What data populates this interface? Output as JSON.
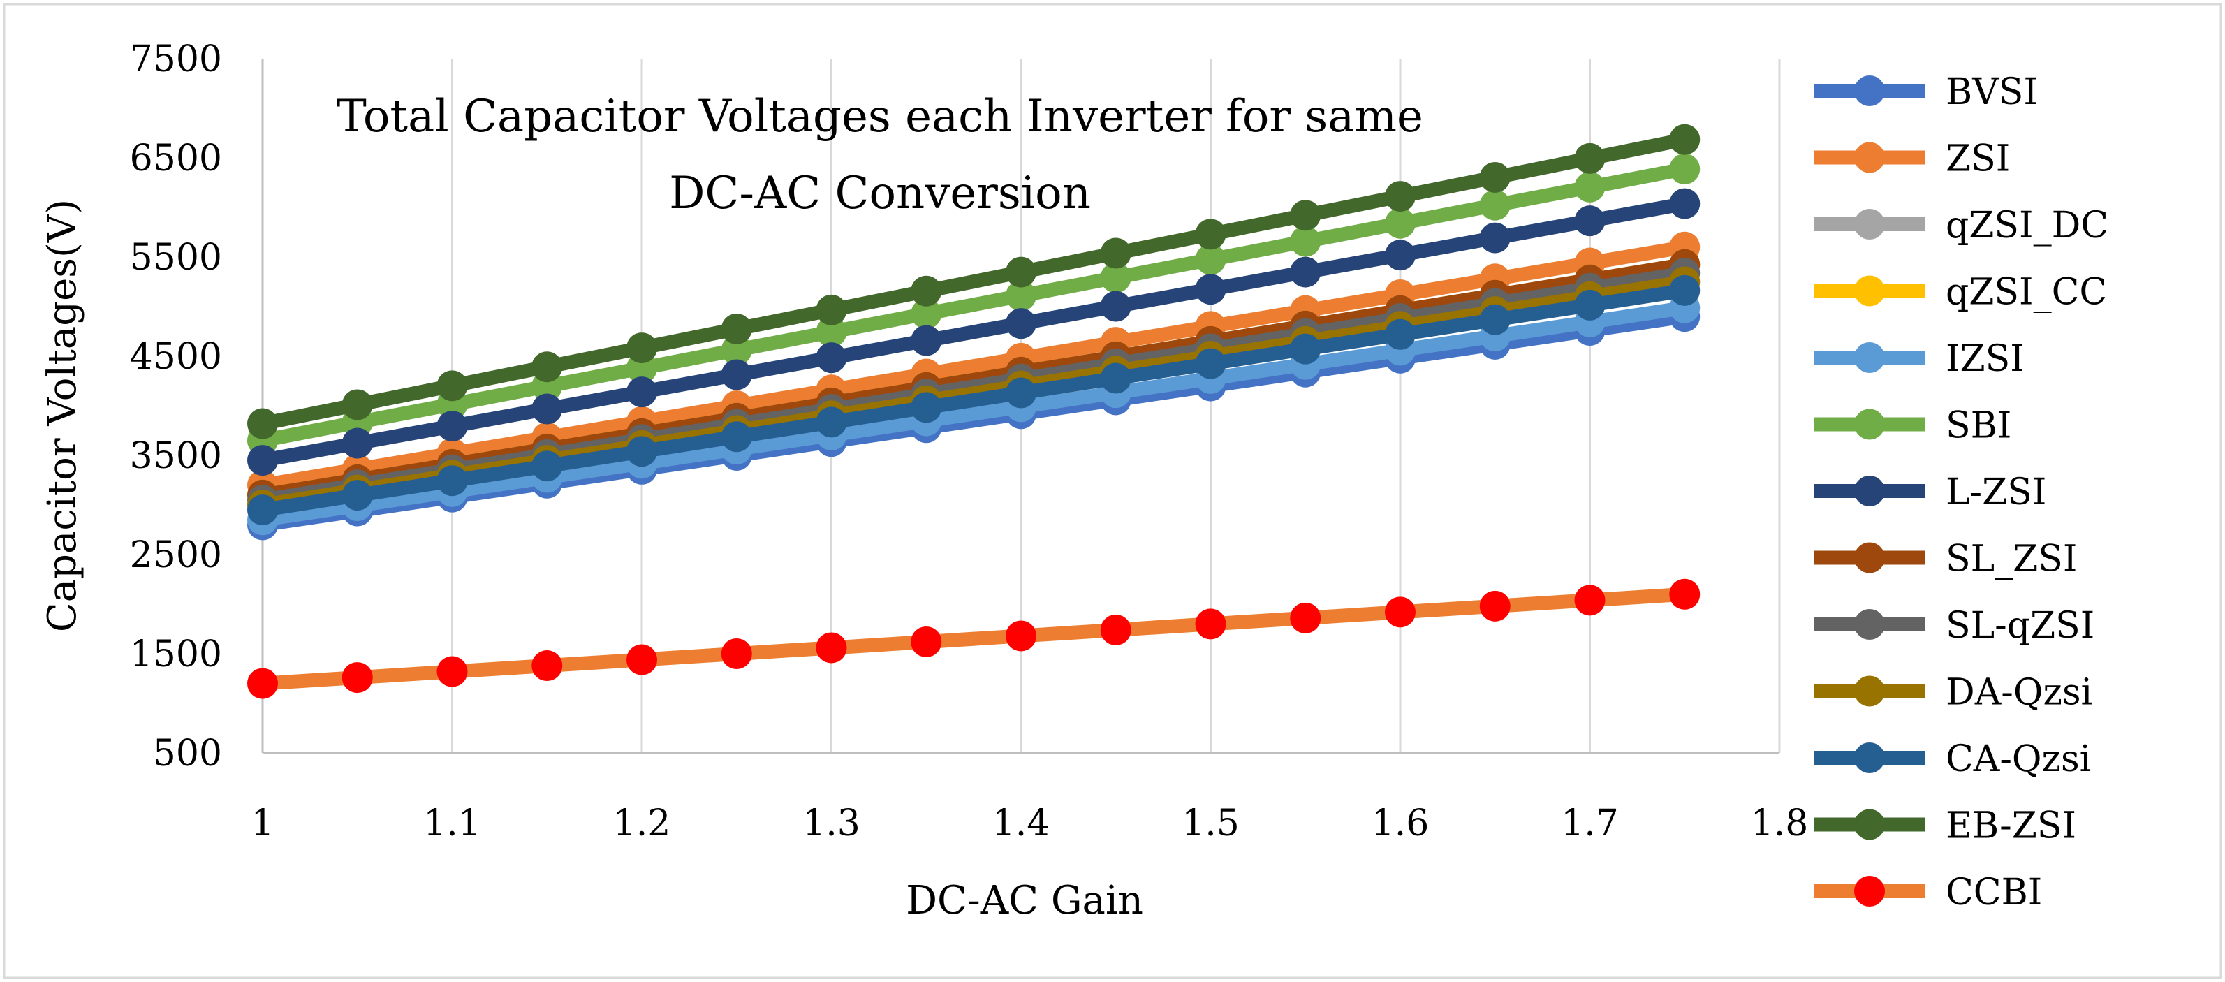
{
  "chart_data": {
    "type": "line",
    "title": "Total Capacitor Voltages each Inverter for same DC-AC Conversion",
    "title_lines": [
      "Total Capacitor Voltages each Inverter for same",
      "DC-AC Conversion"
    ],
    "xlabel": "DC-AC Gain",
    "ylabel": "Capacitor Voltages(V)",
    "x": [
      1,
      1.05,
      1.1,
      1.15,
      1.2,
      1.25,
      1.3,
      1.35,
      1.4,
      1.45,
      1.5,
      1.55,
      1.6,
      1.65,
      1.7,
      1.75
    ],
    "xlim": [
      1,
      1.8
    ],
    "ylim": [
      500,
      7500
    ],
    "x_ticks": [
      1,
      1.1,
      1.2,
      1.3,
      1.4,
      1.5,
      1.6,
      1.7,
      1.8
    ],
    "x_tick_labels": [
      "1",
      "1.1",
      "1.2",
      "1.3",
      "1.4",
      "1.5",
      "1.6",
      "1.7",
      "1.8"
    ],
    "y_ticks": [
      500,
      1500,
      2500,
      3500,
      4500,
      5500,
      6500,
      7500
    ],
    "y_tick_labels": [
      "500",
      "1500",
      "2500",
      "3500",
      "4500",
      "5500",
      "6500",
      "7500"
    ],
    "grid": "vertical",
    "legend_position": "right",
    "series": [
      {
        "name": "BVSI",
        "color": "#4472C4",
        "marker_color": "#4472C4",
        "values": [
          2800,
          2940,
          3080,
          3220,
          3360,
          3500,
          3640,
          3780,
          3920,
          4060,
          4200,
          4340,
          4480,
          4620,
          4760,
          4900
        ]
      },
      {
        "name": "ZSI",
        "color": "#ED7D31",
        "marker_color": "#ED7D31",
        "values": [
          3200,
          3360,
          3520,
          3680,
          3840,
          4000,
          4160,
          4320,
          4480,
          4640,
          4800,
          4960,
          5120,
          5280,
          5440,
          5600
        ]
      },
      {
        "name": "qZSI_DC",
        "color": "#A5A5A5",
        "marker_color": "#A5A5A5",
        "values": [
          3000,
          3150,
          3300,
          3450,
          3600,
          3750,
          3900,
          4050,
          4200,
          4350,
          4500,
          4650,
          4800,
          4950,
          5100,
          5250
        ]
      },
      {
        "name": "qZSI_CC",
        "color": "#FFC000",
        "marker_color": "#FFC000",
        "values": [
          3100,
          3255,
          3410,
          3565,
          3720,
          3875,
          4030,
          4185,
          4340,
          4495,
          4650,
          4805,
          4960,
          5115,
          5270,
          5425
        ]
      },
      {
        "name": "IZSI",
        "color": "#5B9BD5",
        "marker_color": "#5B9BD5",
        "values": [
          2850,
          2993,
          3135,
          3278,
          3420,
          3563,
          3705,
          3848,
          3990,
          4133,
          4275,
          4418,
          4560,
          4703,
          4845,
          4988
        ]
      },
      {
        "name": "SBI",
        "color": "#70AD47",
        "marker_color": "#70AD47",
        "values": [
          3650,
          3833,
          4015,
          4198,
          4380,
          4563,
          4745,
          4928,
          5110,
          5293,
          5475,
          5658,
          5840,
          6023,
          6205,
          6388
        ]
      },
      {
        "name": "L-ZSI",
        "color": "#264478",
        "marker_color": "#264478",
        "values": [
          3450,
          3623,
          3795,
          3968,
          4140,
          4313,
          4485,
          4658,
          4830,
          5003,
          5175,
          5348,
          5520,
          5693,
          5865,
          6038
        ]
      },
      {
        "name": "SL_ZSI",
        "color": "#9E480E",
        "marker_color": "#9E480E",
        "values": [
          3100,
          3255,
          3410,
          3565,
          3720,
          3875,
          4030,
          4185,
          4340,
          4495,
          4650,
          4805,
          4960,
          5115,
          5270,
          5425
        ]
      },
      {
        "name": "SL-qZSI",
        "color": "#636363",
        "marker_color": "#636363",
        "values": [
          3050,
          3203,
          3355,
          3508,
          3660,
          3813,
          3965,
          4118,
          4270,
          4423,
          4575,
          4728,
          4880,
          5033,
          5185,
          5338
        ]
      },
      {
        "name": "DA-Qzsi",
        "color": "#997300",
        "marker_color": "#997300",
        "values": [
          3000,
          3150,
          3300,
          3450,
          3600,
          3750,
          3900,
          4050,
          4200,
          4350,
          4500,
          4650,
          4800,
          4950,
          5100,
          5250
        ]
      },
      {
        "name": "CA-Qzsi",
        "color": "#255E91",
        "marker_color": "#255E91",
        "values": [
          2950,
          3098,
          3245,
          3393,
          3540,
          3688,
          3835,
          3983,
          4130,
          4278,
          4425,
          4573,
          4720,
          4868,
          5015,
          5163
        ]
      },
      {
        "name": "EB-ZSI",
        "color": "#43682B",
        "marker_color": "#43682B",
        "values": [
          3820,
          4011,
          4202,
          4393,
          4584,
          4775,
          4966,
          5157,
          5348,
          5539,
          5730,
          5921,
          6112,
          6303,
          6494,
          6685
        ]
      },
      {
        "name": "CCBI",
        "color": "#ED7D31",
        "marker_color": "#FF0000",
        "values": [
          1200,
          1260,
          1320,
          1380,
          1440,
          1500,
          1560,
          1620,
          1680,
          1740,
          1800,
          1860,
          1920,
          1980,
          2040,
          2100
        ]
      }
    ]
  }
}
